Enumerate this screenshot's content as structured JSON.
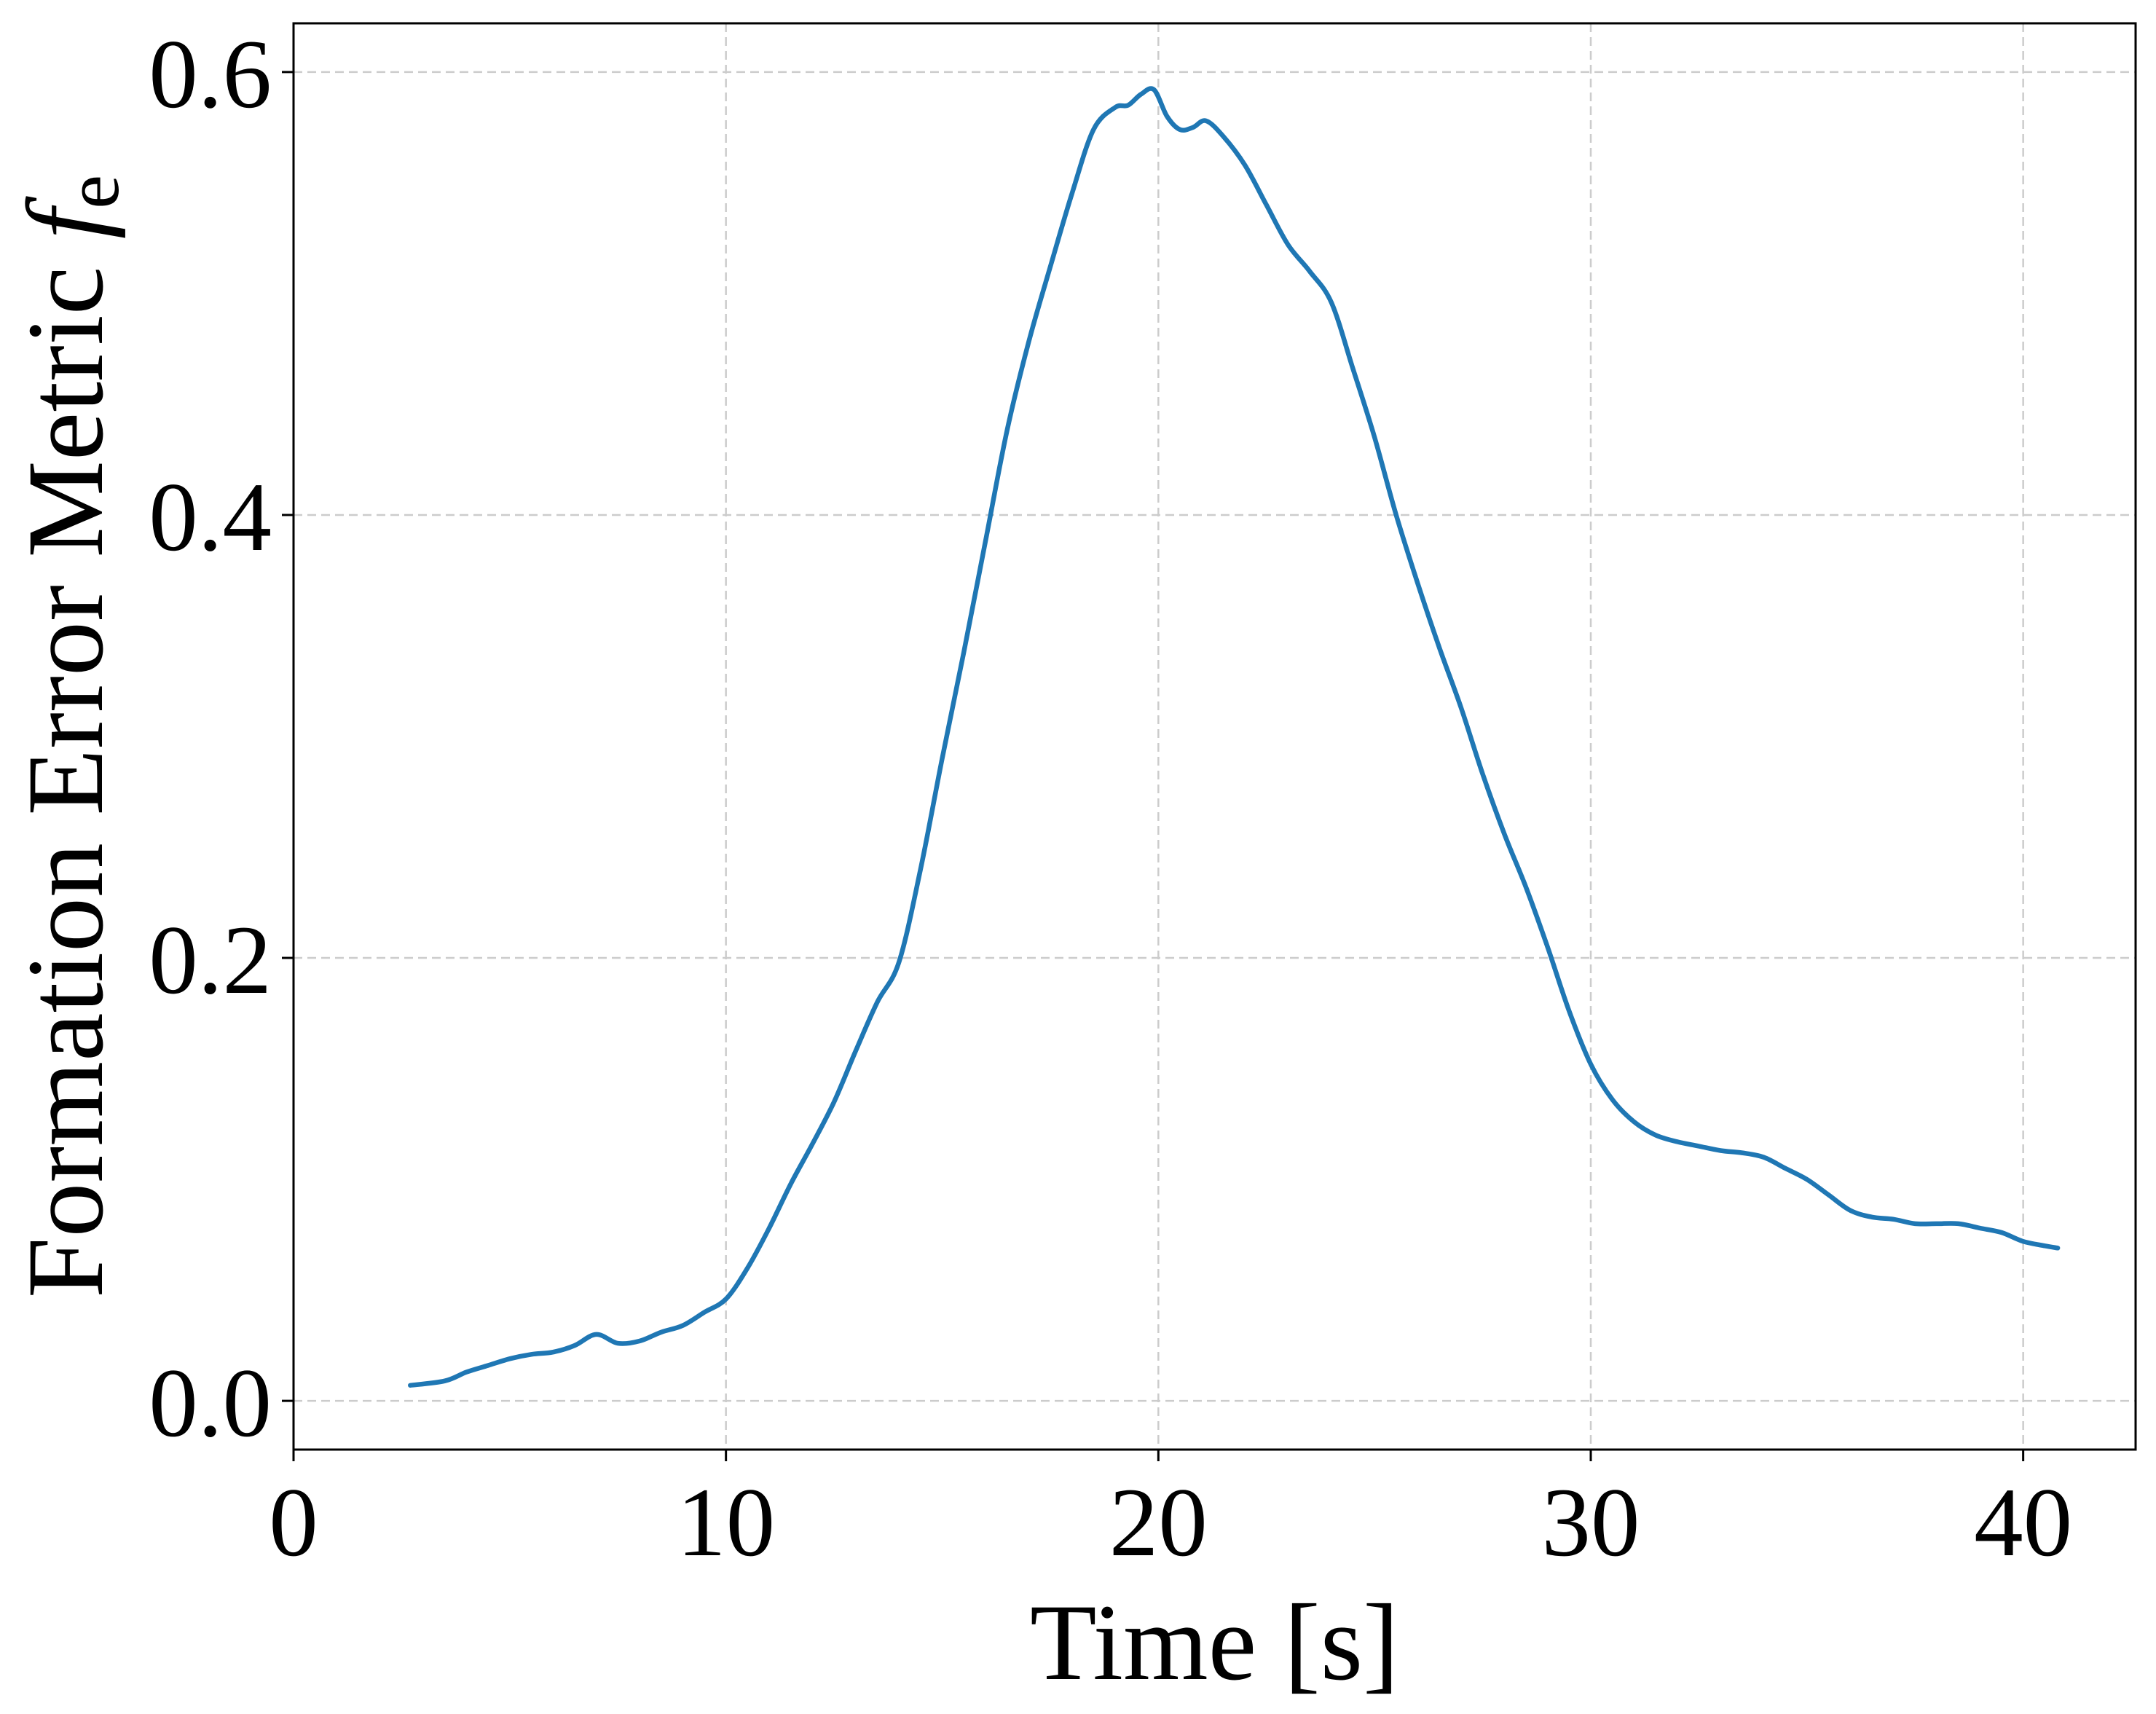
{
  "chart_data": {
    "type": "line",
    "title": "",
    "xlabel": "Time [s]",
    "ylabel_text": "Formation Error Metric ",
    "ylabel_symbol": "f",
    "ylabel_subscript": "e",
    "xlim": [
      0,
      42.6
    ],
    "ylim": [
      -0.022,
      0.622
    ],
    "xticks": [
      0,
      10,
      20,
      30,
      40
    ],
    "xtick_labels": [
      "0",
      "10",
      "20",
      "30",
      "40"
    ],
    "yticks": [
      0.0,
      0.2,
      0.4,
      0.6
    ],
    "ytick_labels": [
      "0.0",
      "0.2",
      "0.4",
      "0.6"
    ],
    "grid": true,
    "legend": false,
    "colors": {
      "series": "#1f77b4",
      "grid": "#cccccc",
      "axes": "#000000"
    },
    "series": [
      {
        "color": "#1f77b4",
        "x": [
          2.7,
          3.5,
          4.0,
          4.5,
          5.0,
          5.5,
          6.0,
          6.5,
          7.0,
          7.5,
          8.0,
          8.5,
          9.0,
          9.5,
          10.0,
          10.5,
          11.0,
          11.5,
          12.0,
          12.5,
          13.0,
          13.5,
          14.0,
          14.5,
          15.0,
          15.5,
          16.0,
          16.5,
          17.0,
          17.5,
          18.0,
          18.5,
          19.0,
          19.3,
          19.6,
          19.9,
          20.2,
          20.5,
          20.8,
          21.1,
          21.5,
          22.0,
          22.5,
          23.0,
          23.5,
          24.0,
          24.5,
          25.0,
          25.5,
          26.0,
          26.5,
          27.0,
          27.5,
          28.0,
          28.5,
          29.0,
          29.5,
          30.0,
          30.5,
          31.0,
          31.5,
          32.0,
          32.5,
          33.0,
          33.5,
          34.0,
          34.5,
          35.0,
          35.5,
          36.0,
          36.5,
          37.0,
          37.5,
          38.0,
          38.5,
          39.0,
          39.5,
          40.0,
          40.5,
          40.8
        ],
        "y": [
          0.007,
          0.009,
          0.013,
          0.016,
          0.019,
          0.021,
          0.022,
          0.025,
          0.03,
          0.026,
          0.027,
          0.031,
          0.034,
          0.04,
          0.046,
          0.06,
          0.078,
          0.098,
          0.116,
          0.135,
          0.158,
          0.18,
          0.198,
          0.24,
          0.29,
          0.338,
          0.388,
          0.438,
          0.478,
          0.512,
          0.545,
          0.574,
          0.584,
          0.585,
          0.59,
          0.592,
          0.58,
          0.574,
          0.575,
          0.578,
          0.571,
          0.558,
          0.54,
          0.522,
          0.51,
          0.496,
          0.466,
          0.435,
          0.4,
          0.369,
          0.34,
          0.313,
          0.283,
          0.256,
          0.232,
          0.205,
          0.176,
          0.152,
          0.136,
          0.126,
          0.12,
          0.117,
          0.115,
          0.113,
          0.112,
          0.11,
          0.105,
          0.1,
          0.093,
          0.086,
          0.083,
          0.082,
          0.08,
          0.08,
          0.08,
          0.078,
          0.076,
          0.072,
          0.07,
          0.069
        ]
      }
    ]
  }
}
